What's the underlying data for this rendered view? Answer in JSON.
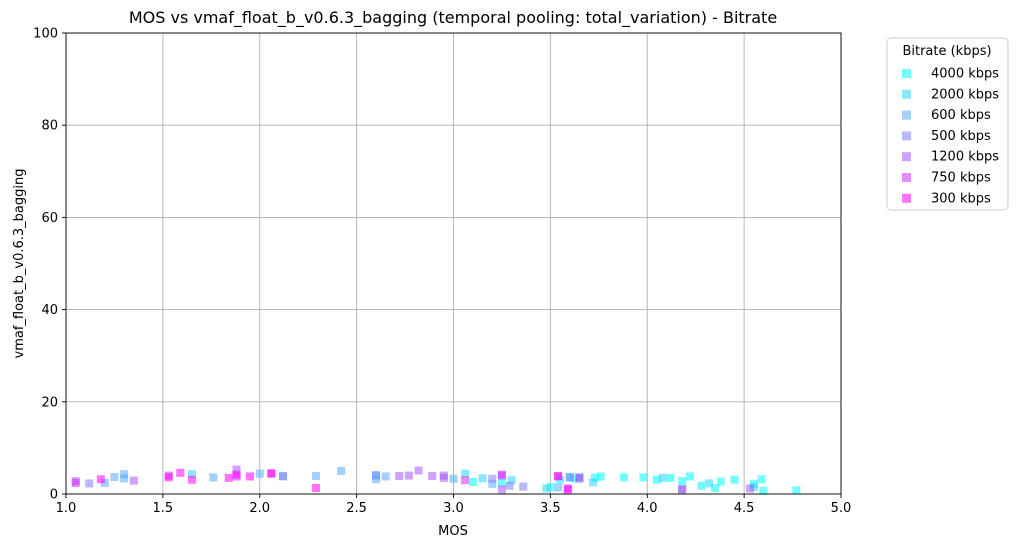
{
  "chart_data": {
    "type": "scatter",
    "title": "MOS vs vmaf_float_b_v0.6.3_bagging (temporal pooling: total_variation) - Bitrate",
    "xlabel": "MOS",
    "ylabel": "vmaf_float_b_v0.6.3_bagging",
    "xlim": [
      1.0,
      5.0
    ],
    "ylim": [
      0,
      100
    ],
    "xticks": [
      "1.0",
      "1.5",
      "2.0",
      "2.5",
      "3.0",
      "3.5",
      "4.0",
      "4.5",
      "5.0"
    ],
    "yticks": [
      "0",
      "20",
      "40",
      "60",
      "80",
      "100"
    ],
    "grid": true,
    "marker": "square",
    "alpha": 0.55,
    "legend": {
      "title": "Bitrate (kbps)",
      "placement": "outside-upper-right"
    },
    "series": [
      {
        "name": "4000 kbps",
        "color": "#00ffff",
        "points": [
          [
            3.1,
            2.6
          ],
          [
            3.25,
            2.4
          ],
          [
            3.5,
            1.5
          ],
          [
            3.55,
            3.1
          ],
          [
            3.62,
            3.4
          ],
          [
            3.73,
            3.5
          ],
          [
            3.76,
            3.8
          ],
          [
            3.88,
            3.6
          ],
          [
            3.98,
            3.6
          ],
          [
            4.05,
            3.1
          ],
          [
            4.12,
            3.5
          ],
          [
            4.18,
            2.8
          ],
          [
            4.22,
            3.8
          ],
          [
            4.28,
            1.8
          ],
          [
            4.35,
            1.3
          ],
          [
            4.38,
            2.7
          ],
          [
            4.45,
            3.1
          ],
          [
            4.55,
            2.2
          ],
          [
            4.59,
            3.2
          ],
          [
            4.6,
            0.7
          ],
          [
            4.77,
            0.8
          ]
        ]
      },
      {
        "name": "2000 kbps",
        "color": "#2ad4ff",
        "points": [
          [
            1.65,
            4.3
          ],
          [
            2.6,
            4.0
          ],
          [
            3.06,
            4.4
          ],
          [
            3.15,
            3.4
          ],
          [
            3.3,
            3.0
          ],
          [
            3.48,
            1.2
          ],
          [
            3.6,
            3.7
          ],
          [
            3.65,
            3.6
          ],
          [
            3.72,
            2.5
          ],
          [
            4.08,
            3.5
          ],
          [
            4.32,
            2.3
          ],
          [
            4.55,
            1.5
          ]
        ]
      },
      {
        "name": "600 kbps",
        "color": "#55aaff",
        "points": [
          [
            1.2,
            2.4
          ],
          [
            1.25,
            3.7
          ],
          [
            1.3,
            4.3
          ],
          [
            1.3,
            3.4
          ],
          [
            1.76,
            3.6
          ],
          [
            2.0,
            4.4
          ],
          [
            2.12,
            3.8
          ],
          [
            2.29,
            3.9
          ],
          [
            2.42,
            5.0
          ],
          [
            2.6,
            3.2
          ],
          [
            2.65,
            3.8
          ],
          [
            3.0,
            3.3
          ],
          [
            3.2,
            2.2
          ],
          [
            3.54,
            1.4
          ]
        ]
      },
      {
        "name": "500 kbps",
        "color": "#7f7fff",
        "points": [
          [
            1.12,
            2.3
          ],
          [
            2.12,
            3.9
          ],
          [
            2.6,
            4.1
          ],
          [
            3.2,
            3.3
          ],
          [
            3.29,
            1.8
          ],
          [
            3.36,
            1.6
          ],
          [
            3.6,
            3.6
          ],
          [
            3.65,
            3.3
          ],
          [
            4.18,
            0.9
          ]
        ]
      },
      {
        "name": "1200 kbps",
        "color": "#aa55ff",
        "points": [
          [
            1.05,
            2.8
          ],
          [
            1.35,
            2.9
          ],
          [
            1.88,
            5.3
          ],
          [
            2.72,
            3.9
          ],
          [
            2.77,
            4.0
          ],
          [
            2.82,
            5.1
          ],
          [
            2.89,
            3.9
          ],
          [
            2.95,
            3.5
          ],
          [
            2.95,
            4.0
          ],
          [
            3.25,
            4.0
          ],
          [
            3.25,
            1.0
          ],
          [
            3.65,
            3.6
          ],
          [
            4.18,
            1.1
          ],
          [
            4.53,
            1.2
          ]
        ]
      },
      {
        "name": "750 kbps",
        "color": "#d42aff",
        "points": [
          [
            1.05,
            2.4
          ],
          [
            1.53,
            4.0
          ],
          [
            1.88,
            3.8
          ],
          [
            2.06,
            4.4
          ],
          [
            3.06,
            3.0
          ],
          [
            3.25,
            4.2
          ],
          [
            3.54,
            3.9
          ],
          [
            3.59,
            1.2
          ]
        ]
      },
      {
        "name": "300 kbps",
        "color": "#ff00ff",
        "points": [
          [
            1.18,
            3.2
          ],
          [
            1.53,
            3.6
          ],
          [
            1.59,
            4.6
          ],
          [
            1.65,
            3.1
          ],
          [
            1.84,
            3.5
          ],
          [
            1.88,
            4.2
          ],
          [
            1.95,
            3.8
          ],
          [
            2.06,
            4.5
          ],
          [
            2.29,
            1.3
          ],
          [
            3.54,
            3.8
          ],
          [
            3.59,
            1.0
          ]
        ]
      }
    ]
  }
}
